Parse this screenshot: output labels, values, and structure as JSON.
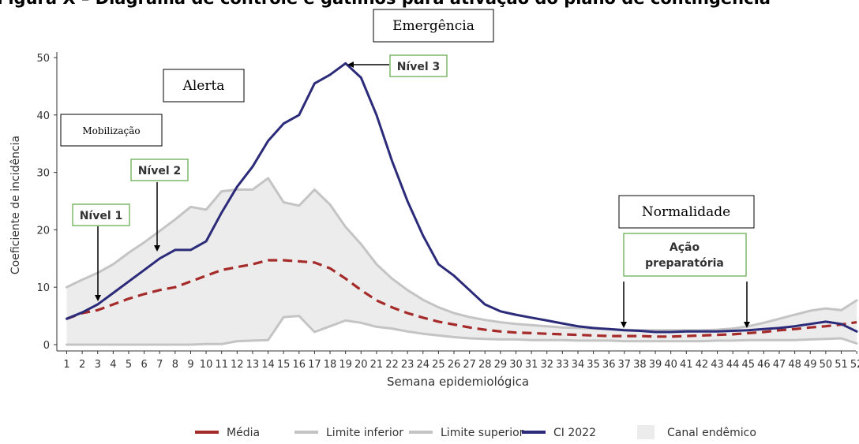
{
  "header": {
    "title": "Figura X – Diagrama de controle e gatilhos para ativação do plano de contingência"
  },
  "boxes": {
    "emergencia": "Emergência",
    "alerta": "Alerta",
    "mobilizacao": "Mobilização",
    "normalidade": "Normalidade",
    "nivel1": "Nível 1",
    "nivel2": "Nível 2",
    "nivel3": "Nível 3",
    "acao_line1": "Ação",
    "acao_line2": "preparatória"
  },
  "chart_data": {
    "type": "line",
    "xlabel": "Semana epidemiológica",
    "ylabel": "Coeficiente de incidência",
    "ylim": [
      0,
      50
    ],
    "yticks": [
      0,
      10,
      20,
      30,
      40,
      50
    ],
    "grid": false,
    "legend_position": "bottom",
    "categories": [
      1,
      2,
      3,
      4,
      5,
      6,
      7,
      8,
      9,
      10,
      11,
      12,
      13,
      14,
      15,
      16,
      17,
      18,
      19,
      20,
      21,
      22,
      23,
      24,
      25,
      26,
      27,
      28,
      29,
      30,
      31,
      32,
      33,
      34,
      35,
      36,
      37,
      38,
      39,
      40,
      41,
      42,
      43,
      44,
      45,
      46,
      47,
      48,
      49,
      50,
      51,
      52
    ],
    "series": [
      {
        "name": "Média",
        "color": "#a52a2a",
        "style": "dashed",
        "values": [
          4.5,
          5.5,
          6,
          7,
          8,
          8.8,
          9.5,
          10,
          11,
          12,
          13,
          13.5,
          14,
          14.7,
          14.7,
          14.5,
          14.3,
          13.3,
          11.5,
          9.5,
          7.7,
          6.5,
          5.5,
          4.7,
          4,
          3.5,
          3,
          2.6,
          2.3,
          2.1,
          2,
          1.9,
          1.8,
          1.7,
          1.6,
          1.5,
          1.5,
          1.5,
          1.4,
          1.4,
          1.5,
          1.6,
          1.7,
          1.8,
          2,
          2.2,
          2.5,
          2.7,
          3,
          3.2,
          3.5,
          3.9
        ]
      },
      {
        "name": "Limite inferior",
        "color": "#c4c4c4",
        "style": "solid",
        "values": [
          0,
          0,
          0,
          0,
          0,
          0,
          0,
          0,
          0,
          0.1,
          0.1,
          0.6,
          0.7,
          0.8,
          4.8,
          5,
          2.2,
          3.2,
          4.2,
          3.8,
          3.1,
          2.8,
          2.3,
          1.9,
          1.6,
          1.3,
          1.1,
          1,
          0.9,
          0.9,
          0.8,
          0.8,
          0.8,
          0.7,
          0.7,
          0.7,
          0.6,
          0.6,
          0.6,
          0.6,
          0.6,
          0.6,
          0.7,
          0.7,
          0.8,
          0.8,
          0.8,
          0.8,
          0.9,
          1,
          1.1,
          0.2
        ]
      },
      {
        "name": "Limite superior",
        "color": "#c4c4c4",
        "style": "solid",
        "values": [
          10,
          11.3,
          12.5,
          14,
          16,
          17.8,
          19.8,
          21.8,
          24,
          23.5,
          26.7,
          27,
          27,
          29,
          24.8,
          24.2,
          27,
          24.4,
          20.5,
          17.5,
          14,
          11.5,
          9.5,
          7.8,
          6.5,
          5.5,
          4.8,
          4.3,
          3.9,
          3.6,
          3.4,
          3.2,
          3,
          2.9,
          2.8,
          2.7,
          2.6,
          2.5,
          2.5,
          2.5,
          2.5,
          2.5,
          2.6,
          2.8,
          3.2,
          3.8,
          4.5,
          5.2,
          5.9,
          6.3,
          6,
          7.7
        ]
      },
      {
        "name": "CI 2022",
        "color": "#2b2b7a",
        "style": "solid",
        "values": [
          4.5,
          5.6,
          7,
          9,
          11,
          13,
          15,
          16.5,
          16.5,
          18,
          23,
          27.5,
          31,
          35.5,
          38.5,
          40,
          45.5,
          47,
          49,
          46.5,
          40,
          32,
          25,
          19,
          14,
          12,
          9.5,
          7,
          5.8,
          5.2,
          4.7,
          4.2,
          3.7,
          3.2,
          2.9,
          2.7,
          2.5,
          2.4,
          2.2,
          2.2,
          2.3,
          2.3,
          2.3,
          2.4,
          2.5,
          2.7,
          2.9,
          3.2,
          3.6,
          4,
          3.6,
          2.3
        ]
      }
    ],
    "band": {
      "name": "Canal endêmico",
      "color": "#ececec",
      "lower": "Limite inferior",
      "upper": "Limite superior"
    }
  }
}
